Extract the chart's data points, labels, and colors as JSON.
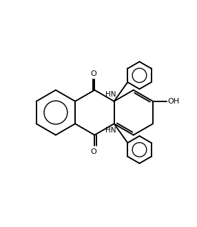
{
  "background_color": "#ffffff",
  "line_color": "#000000",
  "line_width": 1.4,
  "figsize": [
    2.86,
    3.29
  ],
  "dpi": 100,
  "xlim": [
    0,
    10
  ],
  "ylim": [
    0,
    11.5
  ]
}
